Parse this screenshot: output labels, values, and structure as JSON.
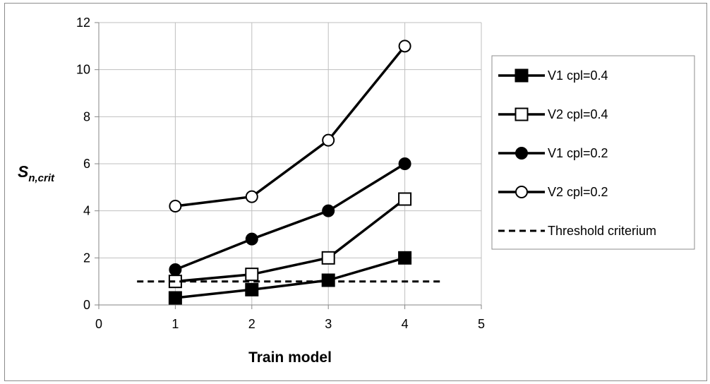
{
  "chart_data": {
    "type": "line",
    "xlabel": "Train model",
    "ylabel_main": "S",
    "ylabel_sub": "n,crit",
    "xlim": [
      0,
      5
    ],
    "ylim": [
      0,
      12
    ],
    "xticks": [
      0,
      1,
      2,
      3,
      4,
      5
    ],
    "yticks": [
      0,
      2,
      4,
      6,
      8,
      10,
      12
    ],
    "grid": true,
    "legend_position": "right",
    "series": [
      {
        "name": "V1 cpl=0.4",
        "marker": "square-filled",
        "x": [
          1,
          2,
          3,
          4
        ],
        "values": [
          0.3,
          0.65,
          1.05,
          2.0
        ]
      },
      {
        "name": "V2 cpl=0.4",
        "marker": "square-open",
        "x": [
          1,
          2,
          3,
          4
        ],
        "values": [
          1.0,
          1.3,
          2.0,
          4.5
        ]
      },
      {
        "name": "V1 cpl=0.2",
        "marker": "circle-filled",
        "x": [
          1,
          2,
          3,
          4
        ],
        "values": [
          1.5,
          2.8,
          4.0,
          6.0
        ]
      },
      {
        "name": "V2 cpl=0.2",
        "marker": "circle-open",
        "x": [
          1,
          2,
          3,
          4
        ],
        "values": [
          4.2,
          4.6,
          7.0,
          11.0
        ]
      },
      {
        "name": "Threshold criterium",
        "marker": "none",
        "line_style": "dashed",
        "x": [
          0.5,
          4.5
        ],
        "values": [
          1.0,
          1.0
        ]
      }
    ],
    "colors": {
      "line": "#000000",
      "grid": "#bfbfbf",
      "axis": "#868686",
      "frame": "#8c8c8c"
    }
  }
}
